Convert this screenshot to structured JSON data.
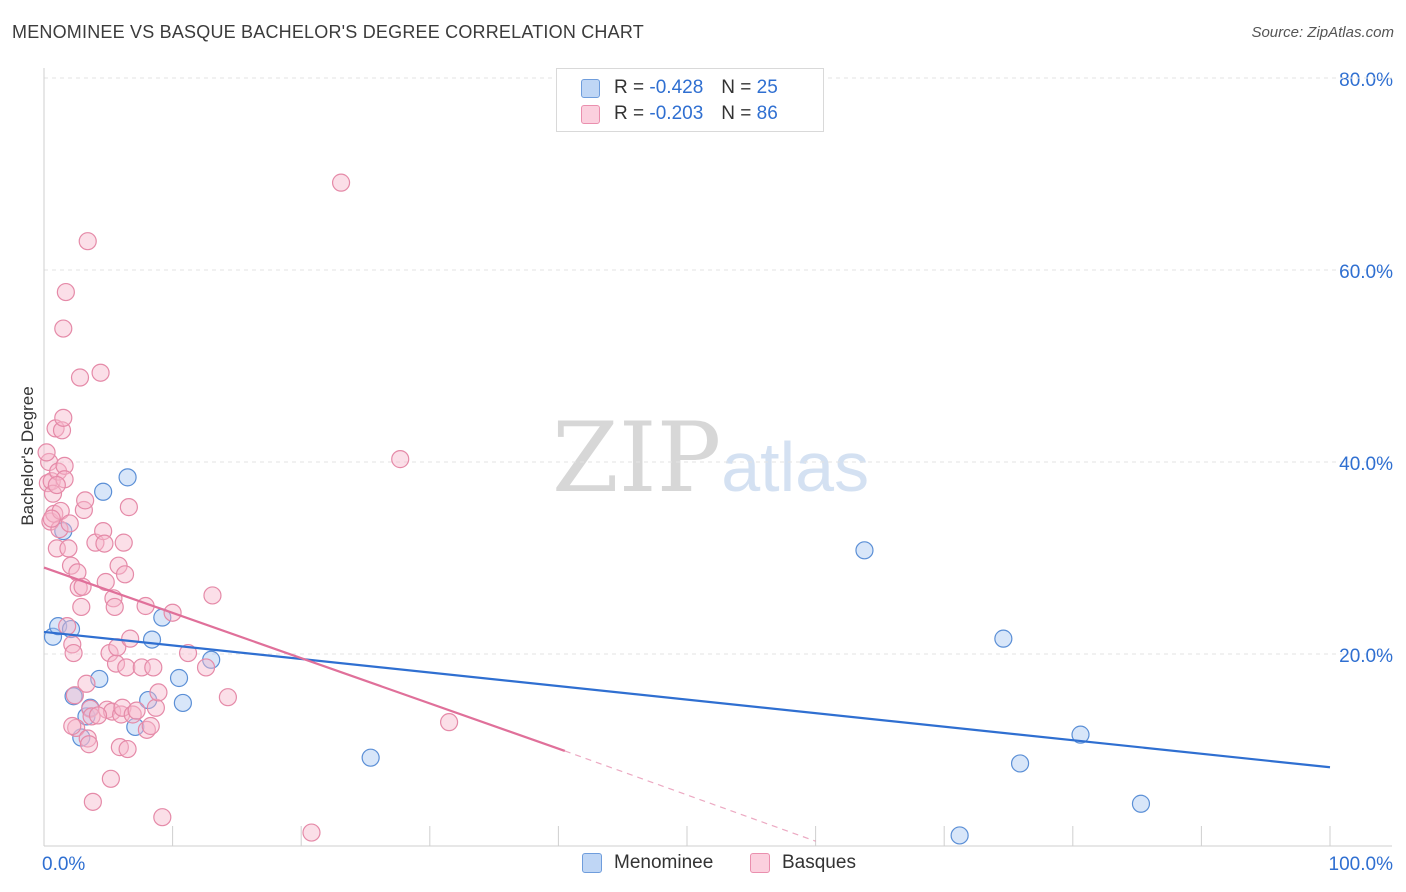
{
  "title": "MENOMINEE VS BASQUE BACHELOR'S DEGREE CORRELATION CHART",
  "source": "Source: ZipAtlas.com",
  "watermark": {
    "part1": "ZIP",
    "part2": "atlas"
  },
  "colors": {
    "blue": "#2f6fd1",
    "blue_fill": "#a9c8f2",
    "blue_stroke": "#5b8fd6",
    "pink": "#e0709a",
    "pink_fill": "#f6b8cb",
    "pink_stroke": "#e58aa8",
    "grid": "#e3e3e3",
    "axis_text": "#2f6fd1"
  },
  "stats": {
    "menominee": {
      "r_label": "R =",
      "r": "-0.428",
      "n_label": "N =",
      "n": "25"
    },
    "basques": {
      "r_label": "R =",
      "r": "-0.203",
      "n_label": "N =",
      "n": "86"
    }
  },
  "legend": {
    "menominee": "Menominee",
    "basques": "Basques"
  },
  "chart_data": {
    "type": "scatter",
    "title": "MENOMINEE VS BASQUE BACHELOR'S DEGREE CORRELATION CHART",
    "xlabel": "",
    "ylabel": "Bachelor's Degree",
    "xlim": [
      0,
      100
    ],
    "ylim": [
      0,
      80
    ],
    "x_tick_labels": [
      "0.0%",
      "100.0%"
    ],
    "y_ticks": [
      20,
      40,
      60,
      80
    ],
    "y_tick_labels": [
      "20.0%",
      "40.0%",
      "60.0%",
      "80.0%"
    ],
    "series": [
      {
        "name": "Menominee",
        "trend": {
          "x0": 0,
          "y0": 22.3,
          "x1": 100,
          "y1": 8.2
        },
        "points": [
          [
            0.7,
            21.8
          ],
          [
            1.1,
            22.9
          ],
          [
            1.5,
            32.8
          ],
          [
            2.1,
            22.6
          ],
          [
            2.3,
            15.6
          ],
          [
            2.9,
            11.3
          ],
          [
            3.3,
            13.5
          ],
          [
            3.6,
            14.4
          ],
          [
            4.3,
            17.4
          ],
          [
            4.6,
            36.9
          ],
          [
            6.5,
            38.4
          ],
          [
            7.1,
            12.4
          ],
          [
            8.1,
            15.2
          ],
          [
            8.4,
            21.5
          ],
          [
            9.2,
            23.8
          ],
          [
            10.8,
            14.9
          ],
          [
            13.0,
            19.4
          ],
          [
            25.4,
            9.2
          ],
          [
            63.8,
            30.8
          ],
          [
            74.6,
            21.6
          ],
          [
            71.2,
            1.1
          ],
          [
            75.9,
            8.6
          ],
          [
            80.6,
            11.6
          ],
          [
            85.3,
            4.4
          ],
          [
            10.5,
            17.5
          ]
        ]
      },
      {
        "name": "Basques",
        "trend": {
          "x0": 0,
          "y0": 29.0,
          "x1": 40.5,
          "y1": 9.9
        },
        "trend_dashed": {
          "x0": 40.5,
          "y0": 9.9,
          "x1": 60,
          "y1": 0.5
        },
        "points": [
          [
            0.3,
            37.8
          ],
          [
            0.4,
            40.0
          ],
          [
            0.5,
            33.8
          ],
          [
            0.6,
            38.0
          ],
          [
            0.7,
            36.7
          ],
          [
            0.8,
            34.6
          ],
          [
            0.9,
            43.5
          ],
          [
            1.0,
            31.0
          ],
          [
            1.1,
            39.0
          ],
          [
            1.2,
            33.0
          ],
          [
            1.3,
            34.9
          ],
          [
            1.4,
            43.3
          ],
          [
            1.5,
            44.6
          ],
          [
            1.6,
            39.6
          ],
          [
            1.7,
            57.7
          ],
          [
            1.5,
            53.9
          ],
          [
            1.6,
            38.2
          ],
          [
            1.8,
            22.9
          ],
          [
            1.9,
            31.0
          ],
          [
            2.0,
            33.6
          ],
          [
            2.1,
            29.2
          ],
          [
            2.2,
            21.0
          ],
          [
            2.3,
            20.1
          ],
          [
            2.4,
            15.7
          ],
          [
            2.5,
            12.3
          ],
          [
            2.6,
            28.5
          ],
          [
            2.7,
            26.9
          ],
          [
            2.8,
            48.8
          ],
          [
            2.9,
            24.9
          ],
          [
            3.0,
            27.0
          ],
          [
            3.1,
            35.0
          ],
          [
            3.2,
            36.0
          ],
          [
            3.3,
            16.9
          ],
          [
            3.4,
            11.2
          ],
          [
            3.5,
            10.6
          ],
          [
            3.4,
            63.0
          ],
          [
            3.6,
            14.3
          ],
          [
            3.7,
            13.5
          ],
          [
            3.8,
            4.6
          ],
          [
            4.0,
            31.6
          ],
          [
            4.4,
            49.3
          ],
          [
            4.6,
            32.8
          ],
          [
            4.7,
            31.5
          ],
          [
            4.8,
            27.5
          ],
          [
            4.9,
            14.2
          ],
          [
            5.1,
            20.1
          ],
          [
            5.2,
            7.0
          ],
          [
            5.3,
            14.0
          ],
          [
            5.4,
            25.8
          ],
          [
            5.5,
            24.9
          ],
          [
            5.6,
            19.0
          ],
          [
            5.7,
            20.7
          ],
          [
            5.8,
            29.2
          ],
          [
            5.9,
            10.3
          ],
          [
            6.0,
            13.7
          ],
          [
            6.1,
            14.4
          ],
          [
            6.2,
            31.6
          ],
          [
            6.3,
            28.3
          ],
          [
            6.4,
            18.6
          ],
          [
            6.5,
            10.1
          ],
          [
            6.6,
            35.3
          ],
          [
            6.7,
            21.6
          ],
          [
            6.9,
            13.7
          ],
          [
            7.2,
            14.1
          ],
          [
            7.6,
            18.6
          ],
          [
            7.9,
            25.0
          ],
          [
            8.0,
            12.1
          ],
          [
            8.3,
            12.5
          ],
          [
            8.5,
            18.6
          ],
          [
            8.7,
            14.4
          ],
          [
            8.9,
            16.0
          ],
          [
            9.2,
            3.0
          ],
          [
            10.0,
            24.3
          ],
          [
            11.2,
            20.1
          ],
          [
            12.6,
            18.6
          ],
          [
            13.1,
            26.1
          ],
          [
            14.3,
            15.5
          ],
          [
            20.8,
            1.4
          ],
          [
            23.1,
            69.1
          ],
          [
            27.7,
            40.3
          ],
          [
            31.5,
            12.9
          ],
          [
            0.2,
            41.0
          ],
          [
            1.0,
            37.6
          ],
          [
            2.2,
            12.5
          ],
          [
            4.2,
            13.6
          ],
          [
            0.6,
            34.1
          ]
        ]
      }
    ]
  }
}
